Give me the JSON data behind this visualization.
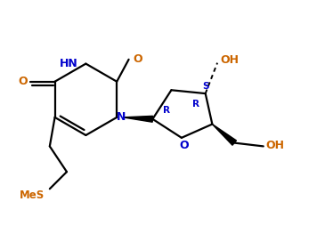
{
  "bg_color": "#ffffff",
  "bond_color": "#000000",
  "label_color_black": "#000000",
  "label_color_blue": "#0000cc",
  "label_color_orange": "#cc6600",
  "figsize": [
    3.65,
    2.81
  ],
  "dpi": 100,
  "xlim": [
    0,
    9.5
  ],
  "ylim": [
    0,
    7.3
  ]
}
